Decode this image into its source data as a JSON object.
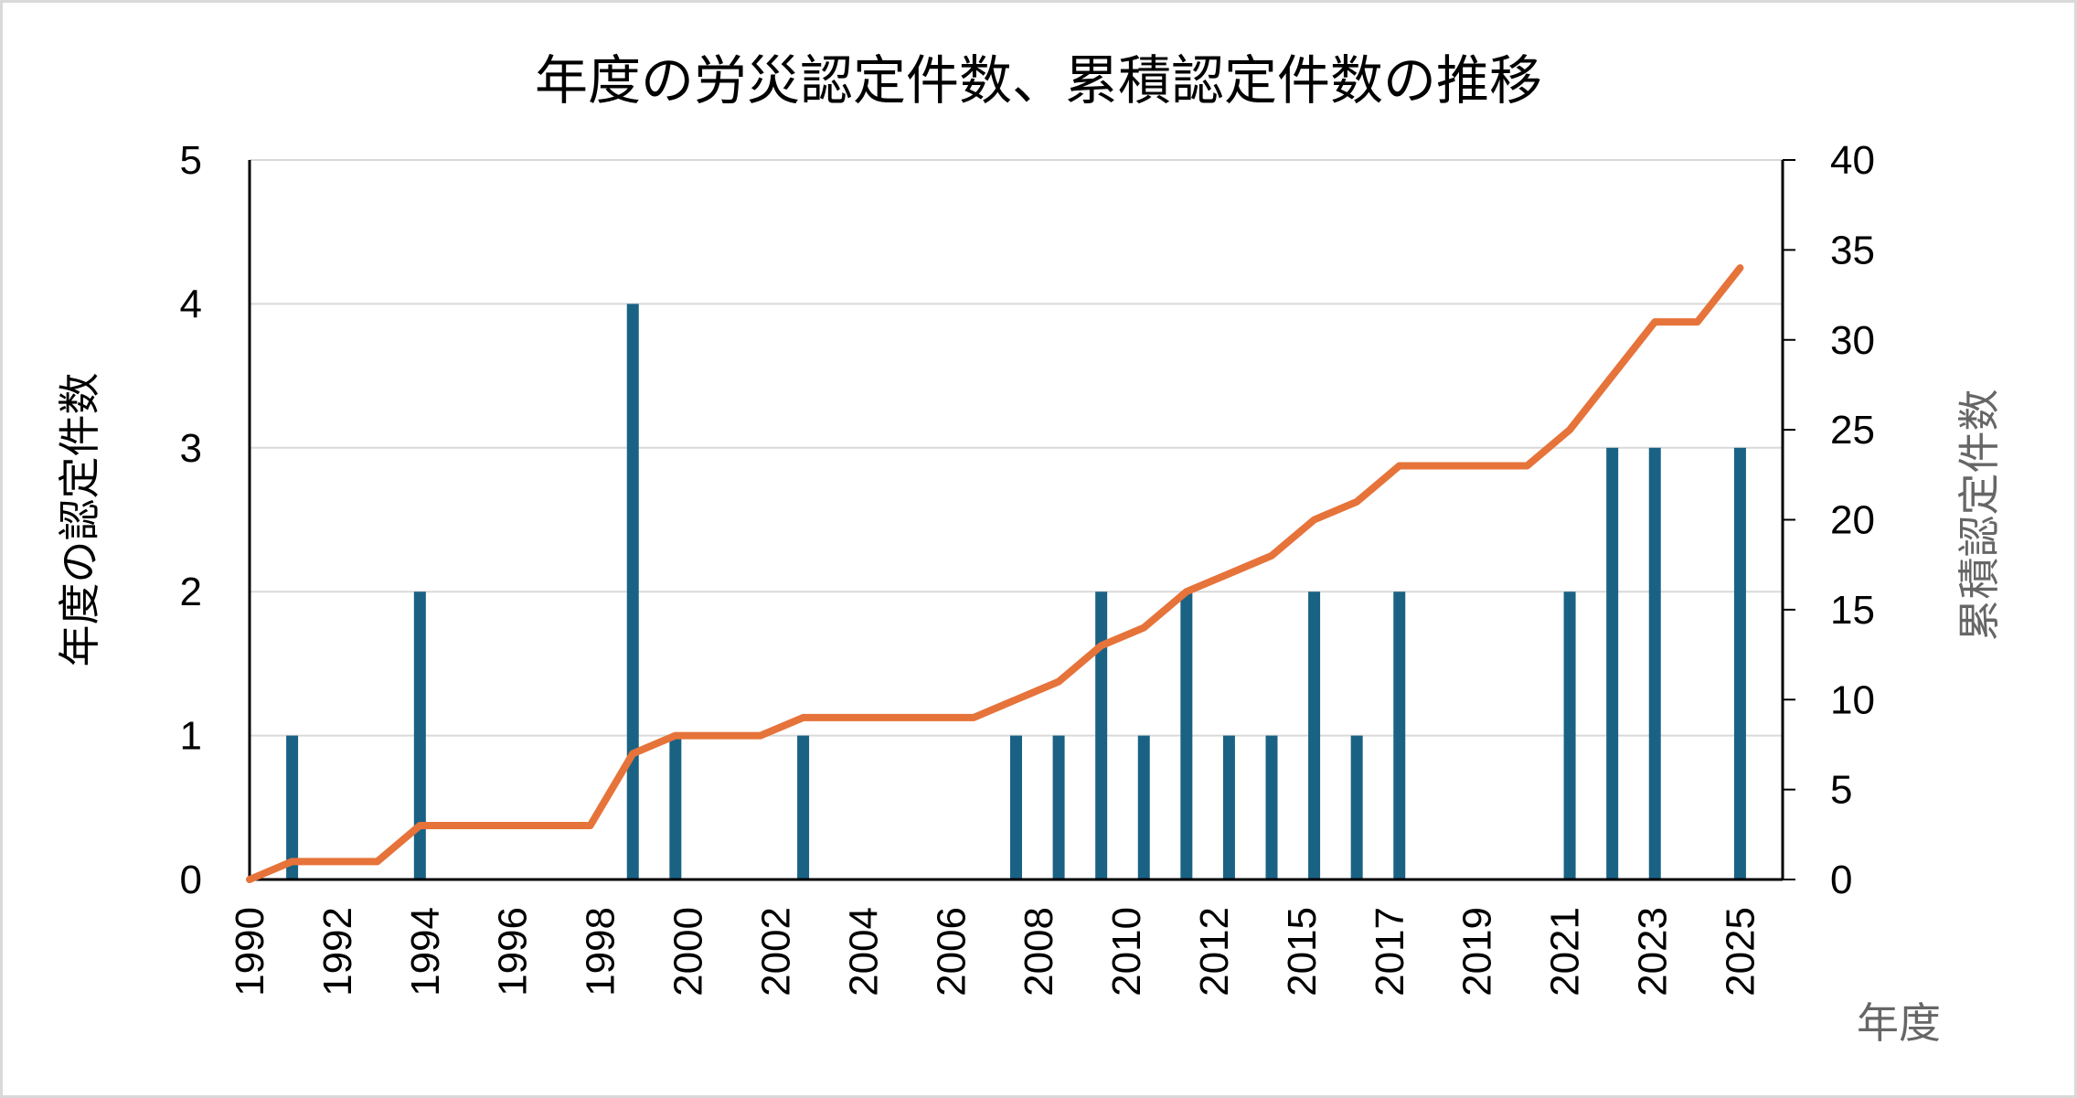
{
  "chart_data": {
    "type": "bar",
    "title": "年度の労災認定件数、累積認定件数の推移",
    "xlabel": "年度",
    "ylabel": "年度の認定件数",
    "y2label": "累積認定件数",
    "ylim": [
      0,
      5
    ],
    "y2lim": [
      0,
      40
    ],
    "yticks": [
      0,
      1,
      2,
      3,
      4,
      5
    ],
    "y2ticks": [
      0,
      5,
      10,
      15,
      20,
      25,
      30,
      35,
      40
    ],
    "xtick_labels": [
      "1990",
      "1992",
      "1994",
      "1996",
      "1998",
      "2000",
      "2002",
      "2004",
      "2006",
      "2008",
      "2010",
      "2012",
      "2015",
      "2017",
      "2019",
      "2021",
      "2023",
      "2025"
    ],
    "grid": true,
    "colors": {
      "bar": "#1a6284",
      "line": "#e6733a"
    },
    "series": [
      {
        "type": "bar",
        "axis": "left",
        "values": [
          0,
          1,
          0,
          0,
          2,
          0,
          0,
          0,
          0,
          4,
          1,
          0,
          0,
          1,
          0,
          0,
          0,
          0,
          1,
          1,
          2,
          1,
          2,
          1,
          1,
          2,
          1,
          2,
          0,
          0,
          0,
          2,
          3,
          3,
          0,
          3
        ]
      },
      {
        "type": "line",
        "axis": "right",
        "values": [
          0,
          1,
          1,
          1,
          3,
          3,
          3,
          3,
          3,
          7,
          8,
          8,
          8,
          9,
          9,
          9,
          9,
          9,
          10,
          11,
          13,
          14,
          16,
          17,
          18,
          20,
          21,
          23,
          23,
          23,
          23,
          25,
          28,
          31,
          31,
          34
        ]
      }
    ]
  }
}
